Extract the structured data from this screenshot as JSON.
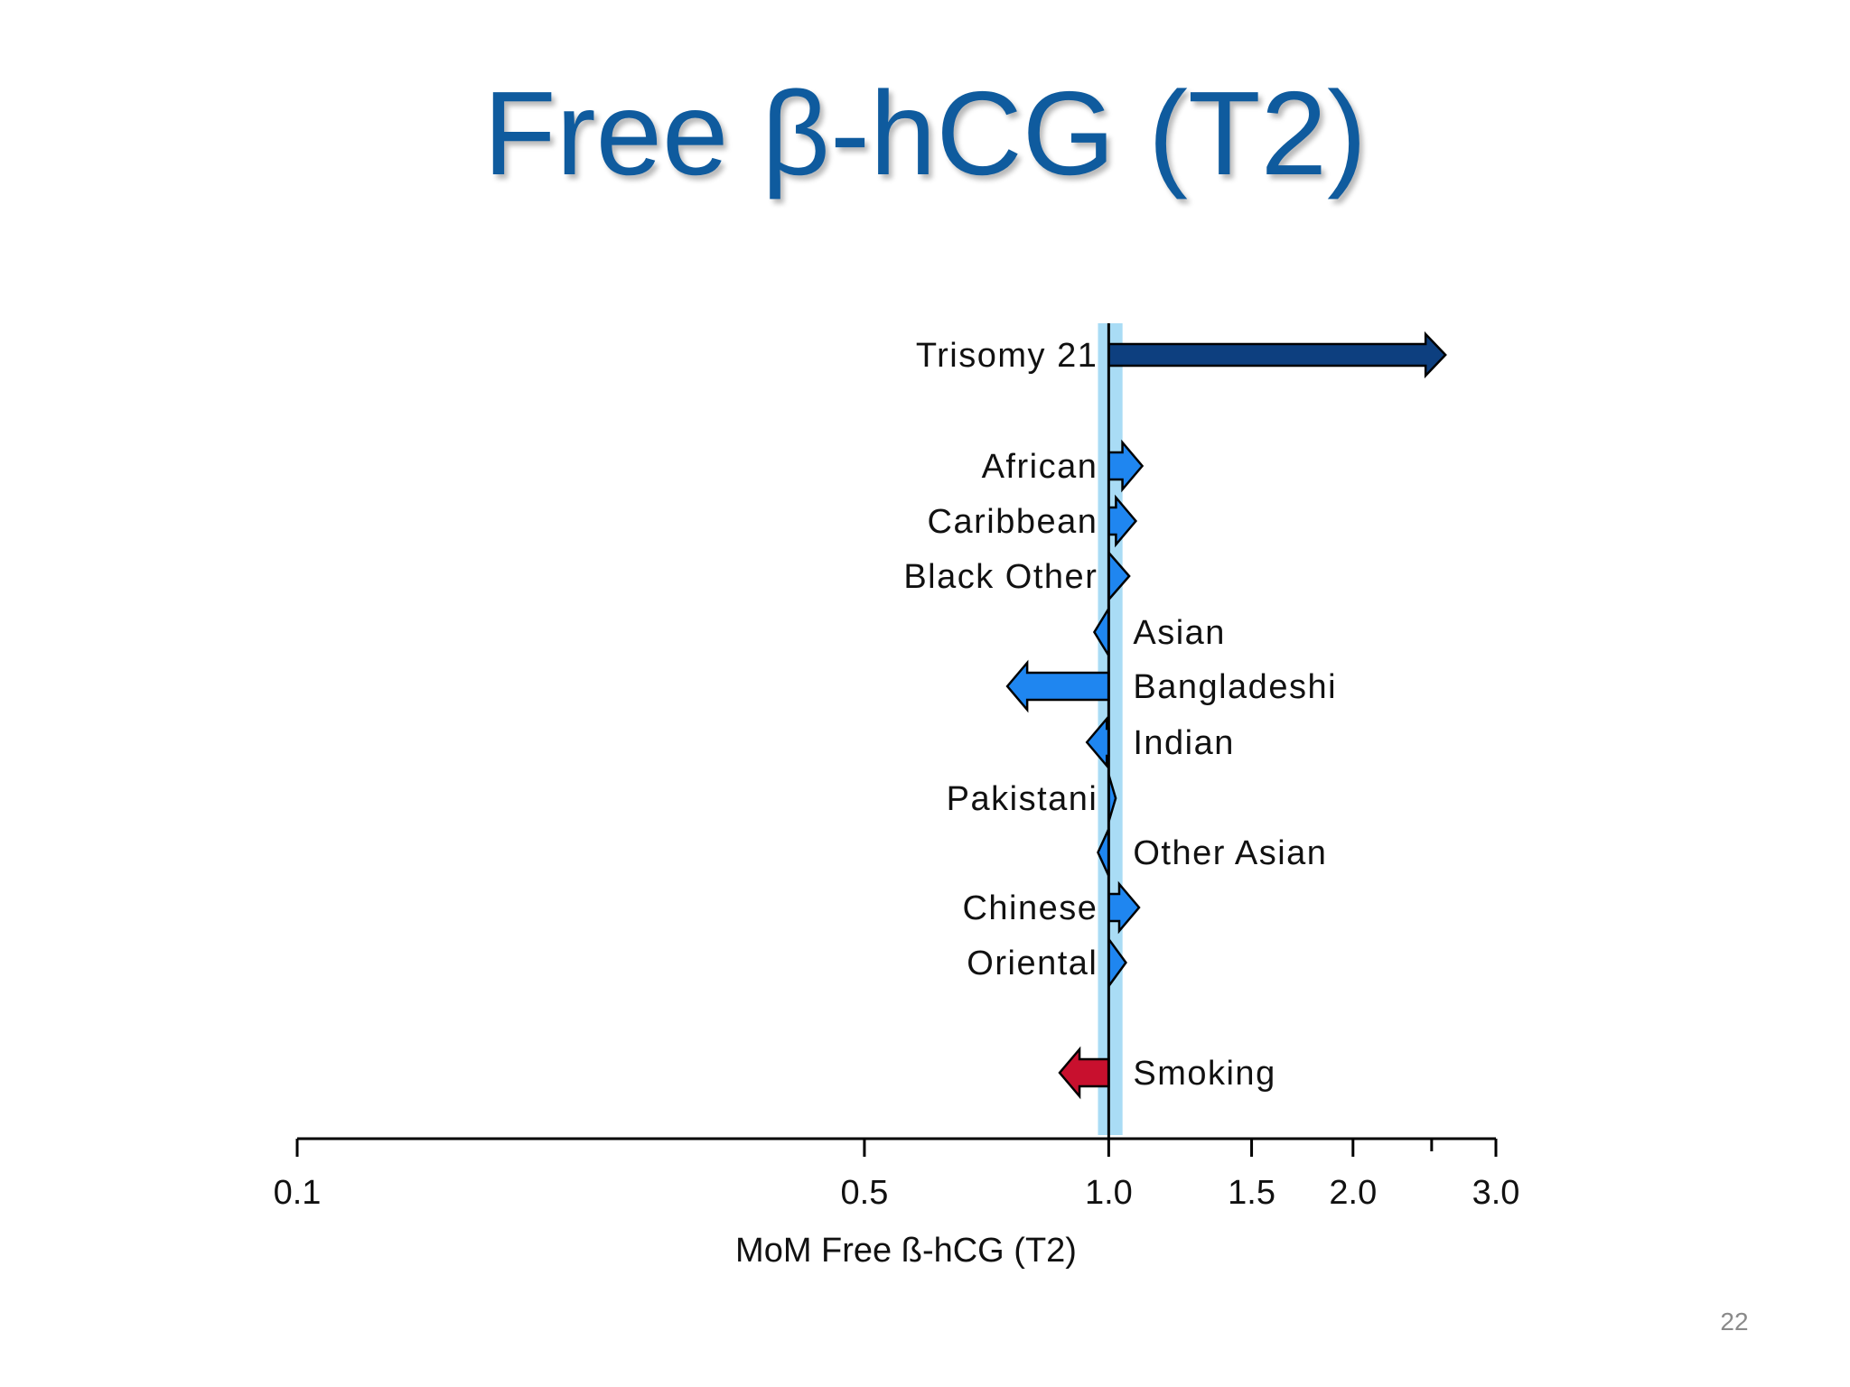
{
  "slide": {
    "title": "Free β-hCG (T2)",
    "page_number": "22"
  },
  "colors": {
    "title": "#0f5b9e",
    "reference_band": "#a9dcf5",
    "trisomy": "#0d3f7f",
    "ethnicity": "#1f86f0",
    "smoking": "#c8102e"
  },
  "chart_data": {
    "type": "bar",
    "orientation": "horizontal",
    "scale": "log",
    "xlim": [
      0.1,
      3.0
    ],
    "reference_value": 1.0,
    "reference_band": [
      0.97,
      1.04
    ],
    "xticks": [
      0.1,
      0.5,
      1.0,
      1.5,
      2.0,
      2.5,
      3.0
    ],
    "xtick_labels": [
      "0.1",
      "0.5",
      "1.0",
      "1.5",
      "2.0",
      "",
      "3.0"
    ],
    "xlabel": "MoM Free ß-hCG (T2)",
    "categories": [
      {
        "label": "Trisomy 21",
        "value": 2.6,
        "group": "trisomy"
      },
      {
        "label": "African",
        "value": 1.1,
        "group": "ethnicity"
      },
      {
        "label": "Caribbean",
        "value": 1.08,
        "group": "ethnicity"
      },
      {
        "label": "Black Other",
        "value": 1.06,
        "group": "ethnicity"
      },
      {
        "label": "Asian",
        "value": 0.96,
        "group": "ethnicity"
      },
      {
        "label": "Bangladeshi",
        "value": 0.75,
        "group": "ethnicity"
      },
      {
        "label": "Indian",
        "value": 0.94,
        "group": "ethnicity"
      },
      {
        "label": "Pakistani",
        "value": 1.02,
        "group": "ethnicity"
      },
      {
        "label": "Other Asian",
        "value": 0.97,
        "group": "ethnicity"
      },
      {
        "label": "Chinese",
        "value": 1.09,
        "group": "ethnicity"
      },
      {
        "label": "Oriental",
        "value": 1.05,
        "group": "ethnicity"
      },
      {
        "label": "Smoking",
        "value": 0.87,
        "group": "smoking"
      }
    ]
  }
}
